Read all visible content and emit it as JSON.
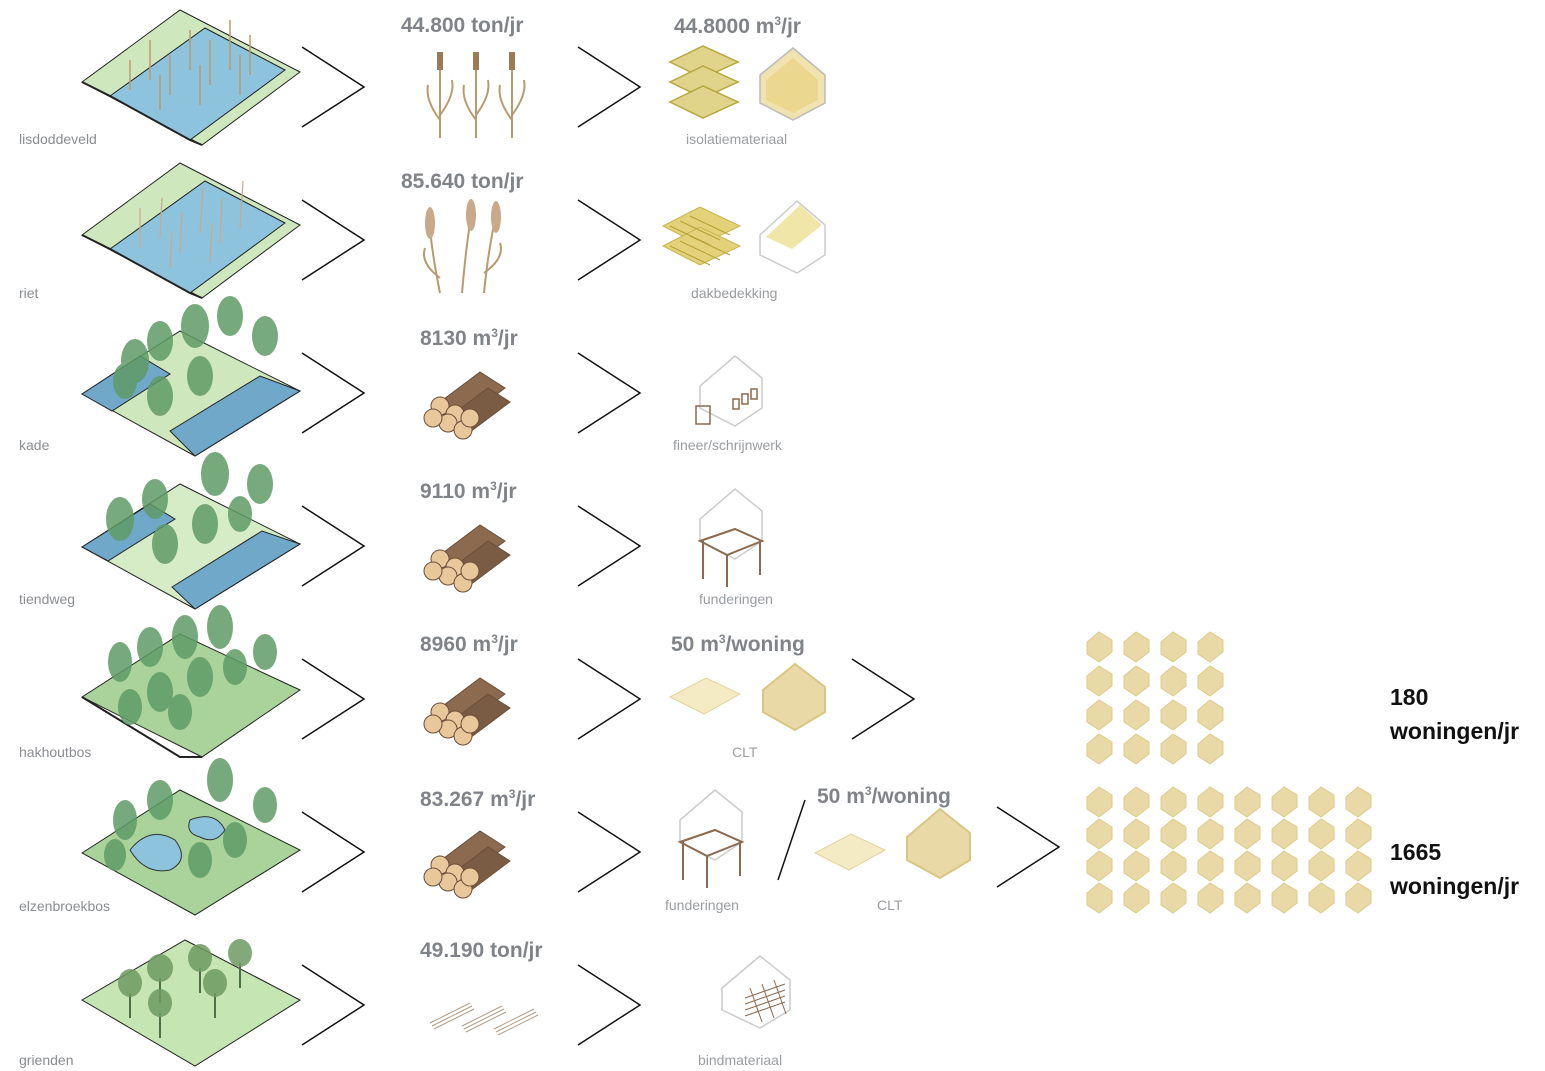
{
  "colors": {
    "label_grey": "#8a8d91",
    "quantity_grey": "#808489",
    "field_green": "#cfe7bd",
    "water_blue": "#8dc3dc",
    "tree_green": "#5f9b66",
    "straw": "#e8d9a6",
    "wood": "#8b6a4f",
    "total_black": "#111111"
  },
  "rows": [
    {
      "land": "lisdoddeveld",
      "quantity": {
        "value": "44.800 ton/jr",
        "sup": ""
      },
      "product_quantity": {
        "value": "44.8000 m",
        "sup": "3",
        "suffix": "/jr"
      },
      "product": "isolatiemateriaal",
      "icons": [
        "cattail-field-icon",
        "cattail-plant-icon",
        "insulation-panel-icon",
        "house-outline-icon"
      ]
    },
    {
      "land": "riet",
      "quantity": {
        "value": "85.640 ton/jr",
        "sup": ""
      },
      "product": "dakbedekking",
      "icons": [
        "reed-field-icon",
        "reed-plant-icon",
        "thatch-layer-icon",
        "house-roof-icon"
      ]
    },
    {
      "land": "kade",
      "quantity": {
        "value": "8130 m",
        "sup": "3",
        "suffix": "/jr"
      },
      "product": "fineer/schrijnwerk",
      "icons": [
        "quay-forest-icon",
        "log-pile-icon",
        "house-joinery-icon"
      ]
    },
    {
      "land": "tiendweg",
      "quantity": {
        "value": "9110 m",
        "sup": "3",
        "suffix": "/jr"
      },
      "product": "funderingen",
      "icons": [
        "road-forest-icon",
        "log-pile-icon",
        "house-foundation-icon"
      ]
    },
    {
      "land": "hakhoutbos",
      "quantity": {
        "value": "8960 m",
        "sup": "3",
        "suffix": "/jr"
      },
      "product_quantity": {
        "value": "50 m",
        "sup": "3",
        "suffix": "/woning"
      },
      "product": "CLT",
      "total": {
        "count": "180",
        "unit": "woningen/jr",
        "houses": 16,
        "cols": 4
      },
      "icons": [
        "coppice-forest-icon",
        "log-pile-icon",
        "clt-panel-icon",
        "clt-house-icon",
        "house-grid-icon"
      ]
    },
    {
      "land": "elzenbroekbos",
      "quantity": {
        "value": "83.267 m",
        "sup": "3",
        "suffix": "/jr"
      },
      "product": "funderingen",
      "product_quantity": {
        "value": "50 m",
        "sup": "3",
        "suffix": "/woning"
      },
      "product_b": "CLT",
      "total": {
        "count": "1665",
        "unit": "woningen/jr",
        "houses": 32,
        "cols": 8
      },
      "icons": [
        "alder-swamp-icon",
        "log-pile-icon",
        "house-foundation-icon",
        "clt-panel-icon",
        "clt-house-icon",
        "house-grid-icon"
      ]
    },
    {
      "land": "grienden",
      "quantity": {
        "value": "49.190 ton/jr",
        "sup": ""
      },
      "product": "bindmateriaal",
      "icons": [
        "willow-field-icon",
        "willow-bundle-icon",
        "house-binding-icon"
      ]
    }
  ]
}
